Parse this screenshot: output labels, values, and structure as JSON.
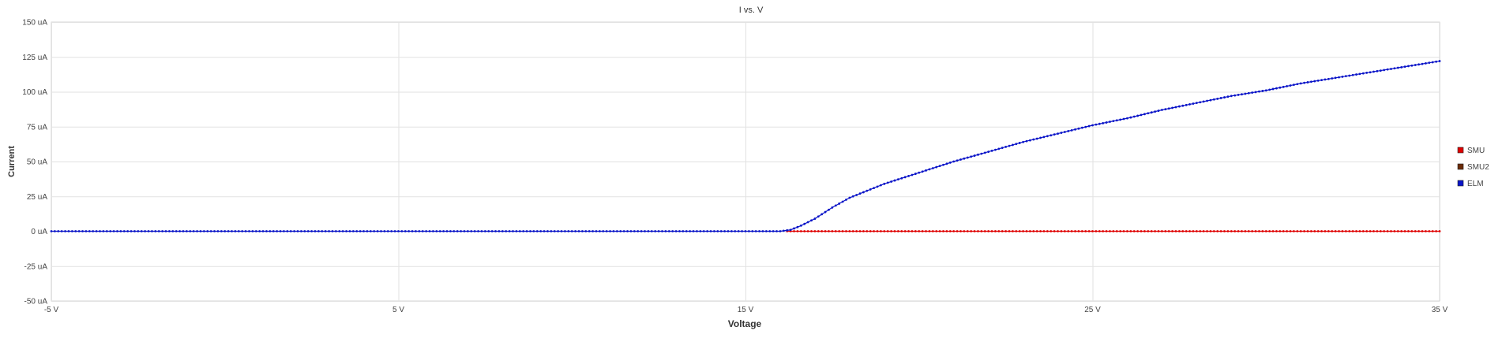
{
  "chart_data": {
    "type": "scatter",
    "title": "I vs. V",
    "xlabel": "Voltage",
    "ylabel": "Current",
    "xlim": [
      -5,
      35
    ],
    "ylim": [
      -50,
      150
    ],
    "x_ticks": [
      {
        "value": -5,
        "label": "-5 V"
      },
      {
        "value": 5,
        "label": "5 V"
      },
      {
        "value": 15,
        "label": "15 V"
      },
      {
        "value": 25,
        "label": "25 V"
      },
      {
        "value": 35,
        "label": "35 V"
      }
    ],
    "y_ticks": [
      {
        "value": 150,
        "label": "150 uA"
      },
      {
        "value": 125,
        "label": "125 uA"
      },
      {
        "value": 100,
        "label": "100 uA"
      },
      {
        "value": 75,
        "label": "75 uA"
      },
      {
        "value": 50,
        "label": "50 uA"
      },
      {
        "value": 25,
        "label": "25 uA"
      },
      {
        "value": 0,
        "label": "0 uA"
      },
      {
        "value": -25,
        "label": "-25 uA"
      },
      {
        "value": -50,
        "label": "-50 uA"
      }
    ],
    "grid": true,
    "legend_position": "right",
    "series": [
      {
        "name": "SMU",
        "color": "#e00000",
        "points": [
          [
            16.2,
            0
          ],
          [
            17,
            0
          ],
          [
            18,
            0
          ],
          [
            19,
            0
          ],
          [
            20,
            0
          ],
          [
            21,
            0
          ],
          [
            22,
            0
          ],
          [
            23,
            0
          ],
          [
            24,
            0
          ],
          [
            25,
            0
          ],
          [
            26,
            0
          ],
          [
            27,
            0
          ],
          [
            28,
            0
          ],
          [
            29,
            0
          ],
          [
            30,
            0
          ],
          [
            31,
            0
          ],
          [
            32,
            0
          ],
          [
            33,
            0
          ],
          [
            34,
            0
          ],
          [
            35,
            0
          ]
        ]
      },
      {
        "name": "SMU2",
        "color": "#6b2b08",
        "points": []
      },
      {
        "name": "ELM",
        "color": "#0a14c8",
        "points": [
          [
            -5,
            0
          ],
          [
            0,
            0
          ],
          [
            5,
            0
          ],
          [
            10,
            0
          ],
          [
            15,
            0
          ],
          [
            16,
            0
          ],
          [
            16.3,
            1
          ],
          [
            16.6,
            4
          ],
          [
            17,
            9
          ],
          [
            17.5,
            17
          ],
          [
            18,
            24
          ],
          [
            19,
            34
          ],
          [
            20,
            42
          ],
          [
            21,
            50
          ],
          [
            22,
            57
          ],
          [
            23,
            64
          ],
          [
            24,
            70
          ],
          [
            25,
            76
          ],
          [
            26,
            81
          ],
          [
            27,
            87
          ],
          [
            28,
            92
          ],
          [
            29,
            97
          ],
          [
            30,
            101
          ],
          [
            31,
            106
          ],
          [
            32,
            110
          ],
          [
            33,
            114
          ],
          [
            34,
            118
          ],
          [
            35,
            122
          ]
        ]
      }
    ]
  }
}
